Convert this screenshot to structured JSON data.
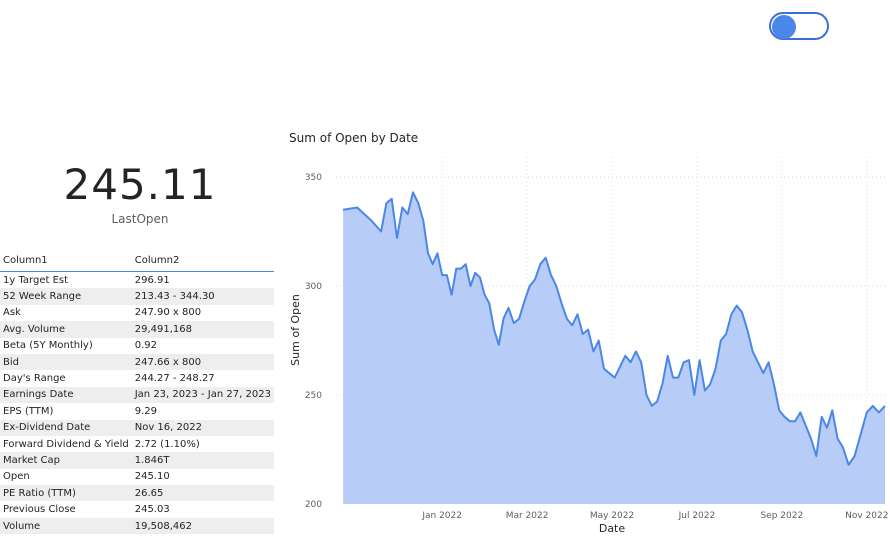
{
  "kpi": {
    "value": "245.11",
    "label": "LastOpen"
  },
  "table": {
    "columns": [
      "Column1",
      "Column2"
    ],
    "rows": [
      [
        "1y Target Est",
        "296.91"
      ],
      [
        "52 Week Range",
        "213.43 - 344.30"
      ],
      [
        "Ask",
        "247.90 x 800"
      ],
      [
        "Avg. Volume",
        "29,491,168"
      ],
      [
        "Beta (5Y Monthly)",
        "0.92"
      ],
      [
        "Bid",
        "247.66 x 800"
      ],
      [
        "Day's Range",
        "244.27 - 248.27"
      ],
      [
        "Earnings Date",
        "Jan 23, 2023 - Jan 27, 2023"
      ],
      [
        "EPS (TTM)",
        "9.29"
      ],
      [
        "Ex-Dividend Date",
        "Nov 16, 2022"
      ],
      [
        "Forward Dividend & Yield",
        "2.72 (1.10%)"
      ],
      [
        "Market Cap",
        "1.846T"
      ],
      [
        "Open",
        "245.10"
      ],
      [
        "PE Ratio (TTM)",
        "26.65"
      ],
      [
        "Previous Close",
        "245.03"
      ],
      [
        "Volume",
        "19,508,462"
      ]
    ]
  },
  "chart_data": {
    "type": "area",
    "title": "Sum of Open by Date",
    "x_label": "Date",
    "y_label": "Sum of Open",
    "color": "#4a87e8",
    "fill": "#b7cdf7",
    "grid": true,
    "xlim": [
      "2021-11",
      "2022-11"
    ],
    "xticks": [
      {
        "value": "2022-01",
        "label": "Jan 2022"
      },
      {
        "value": "2022-03",
        "label": "Mar 2022"
      },
      {
        "value": "2022-05",
        "label": "May 2022"
      },
      {
        "value": "2022-07",
        "label": "Jul 2022"
      },
      {
        "value": "2022-09",
        "label": "Sep 2022"
      },
      {
        "value": "2022-11",
        "label": "Nov 2022"
      }
    ],
    "ylim": [
      200,
      350
    ],
    "yticks": [
      200,
      250,
      300,
      350
    ],
    "x": [
      "2021-11",
      "2021-11",
      "2021-11",
      "2021-12",
      "2021-12",
      "2021-12",
      "2021-12",
      "2021-12",
      "2021-12",
      "2021-12",
      "2021-12",
      "2022-01",
      "2022-01",
      "2022-01",
      "2022-01",
      "2022-01",
      "2022-01",
      "2022-01",
      "2022-01",
      "2022-01",
      "2022-02",
      "2022-02",
      "2022-02",
      "2022-02",
      "2022-02",
      "2022-02",
      "2022-02",
      "2022-02",
      "2022-02",
      "2022-03",
      "2022-03",
      "2022-03",
      "2022-03",
      "2022-03",
      "2022-03",
      "2022-03",
      "2022-03",
      "2022-04",
      "2022-04",
      "2022-04",
      "2022-04",
      "2022-04",
      "2022-04",
      "2022-04",
      "2022-04",
      "2022-05",
      "2022-05",
      "2022-05",
      "2022-05",
      "2022-05",
      "2022-05",
      "2022-05",
      "2022-05",
      "2022-06",
      "2022-06",
      "2022-06",
      "2022-06",
      "2022-06",
      "2022-06",
      "2022-06",
      "2022-06",
      "2022-07",
      "2022-07",
      "2022-07",
      "2022-07",
      "2022-07",
      "2022-07",
      "2022-07",
      "2022-07",
      "2022-08",
      "2022-08",
      "2022-08",
      "2022-08",
      "2022-08",
      "2022-08",
      "2022-08",
      "2022-08",
      "2022-09",
      "2022-09",
      "2022-09",
      "2022-09",
      "2022-09",
      "2022-09",
      "2022-09",
      "2022-09",
      "2022-10",
      "2022-10",
      "2022-10",
      "2022-10",
      "2022-10",
      "2022-10",
      "2022-10",
      "2022-10",
      "2022-11",
      "2022-11",
      "2022-11",
      "2022-11",
      "2022-11",
      "2022-11",
      "2022-11"
    ],
    "values": [
      335,
      336,
      330,
      325,
      338,
      340,
      322,
      336,
      333,
      343,
      338,
      330,
      315,
      310,
      315,
      305,
      305,
      296,
      308,
      308,
      310,
      300,
      306,
      304,
      296,
      292,
      280,
      273,
      285,
      290,
      283,
      285,
      293,
      300,
      303,
      310,
      313,
      305,
      300,
      292,
      285,
      282,
      287,
      278,
      280,
      270,
      275,
      262,
      260,
      258,
      263,
      268,
      265,
      270,
      265,
      250,
      245,
      247,
      255,
      268,
      258,
      258,
      265,
      266,
      250,
      266,
      252,
      255,
      262,
      275,
      278,
      287,
      291,
      288,
      280,
      270,
      265,
      260,
      265,
      255,
      243,
      240,
      238,
      238,
      242,
      236,
      230,
      222,
      240,
      235,
      243,
      230,
      226,
      218,
      222,
      232,
      242,
      245,
      242,
      245
    ]
  }
}
